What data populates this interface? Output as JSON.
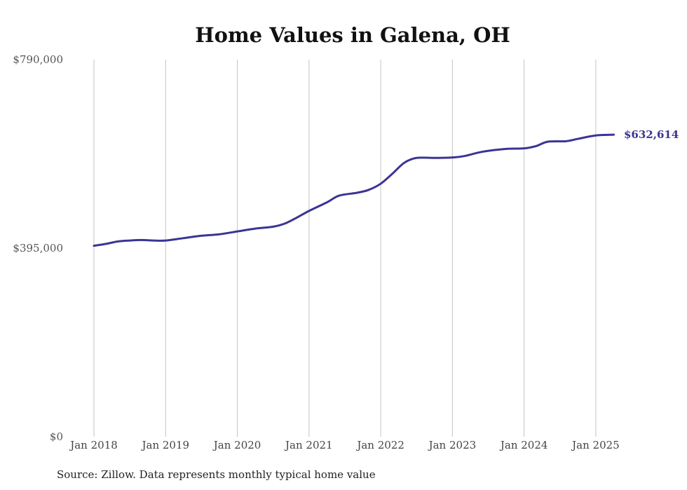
{
  "chart_data": {
    "type": "line",
    "title": "Home Values in Galena, OH",
    "xlabel": "",
    "ylabel": "",
    "ylim": [
      0,
      790000
    ],
    "y_ticks": [
      {
        "value": 0,
        "label": "$0"
      },
      {
        "value": 395000,
        "label": "$395,000"
      },
      {
        "value": 790000,
        "label": "$790,000"
      }
    ],
    "x_ticks": [
      {
        "value": 2018,
        "label": "Jan 2018"
      },
      {
        "value": 2019,
        "label": "Jan 2019"
      },
      {
        "value": 2020,
        "label": "Jan 2020"
      },
      {
        "value": 2021,
        "label": "Jan 2021"
      },
      {
        "value": 2022,
        "label": "Jan 2022"
      },
      {
        "value": 2023,
        "label": "Jan 2023"
      },
      {
        "value": 2024,
        "label": "Jan 2024"
      },
      {
        "value": 2025,
        "label": "Jan 2025"
      }
    ],
    "xlim": [
      2018,
      2025.25
    ],
    "grid": "vertical",
    "color": "#3b3494",
    "end_label": "$632,614",
    "series": [
      {
        "points": [
          {
            "x": 2018.0,
            "y": 400000
          },
          {
            "x": 2018.17,
            "y": 404000
          },
          {
            "x": 2018.33,
            "y": 409000
          },
          {
            "x": 2018.5,
            "y": 411000
          },
          {
            "x": 2018.67,
            "y": 412000
          },
          {
            "x": 2018.83,
            "y": 411000
          },
          {
            "x": 2019.0,
            "y": 411000
          },
          {
            "x": 2019.25,
            "y": 416000
          },
          {
            "x": 2019.5,
            "y": 421000
          },
          {
            "x": 2019.75,
            "y": 424000
          },
          {
            "x": 2020.0,
            "y": 430000
          },
          {
            "x": 2020.25,
            "y": 436000
          },
          {
            "x": 2020.5,
            "y": 440000
          },
          {
            "x": 2020.67,
            "y": 447000
          },
          {
            "x": 2020.83,
            "y": 459000
          },
          {
            "x": 2021.0,
            "y": 473000
          },
          {
            "x": 2021.25,
            "y": 491000
          },
          {
            "x": 2021.42,
            "y": 505000
          },
          {
            "x": 2021.67,
            "y": 511000
          },
          {
            "x": 2021.83,
            "y": 517000
          },
          {
            "x": 2022.0,
            "y": 530000
          },
          {
            "x": 2022.17,
            "y": 552000
          },
          {
            "x": 2022.33,
            "y": 574000
          },
          {
            "x": 2022.5,
            "y": 584000
          },
          {
            "x": 2022.75,
            "y": 584000
          },
          {
            "x": 2023.0,
            "y": 585000
          },
          {
            "x": 2023.17,
            "y": 588000
          },
          {
            "x": 2023.42,
            "y": 597000
          },
          {
            "x": 2023.75,
            "y": 603000
          },
          {
            "x": 2024.0,
            "y": 604000
          },
          {
            "x": 2024.17,
            "y": 609000
          },
          {
            "x": 2024.33,
            "y": 618000
          },
          {
            "x": 2024.58,
            "y": 619000
          },
          {
            "x": 2024.75,
            "y": 624000
          },
          {
            "x": 2025.0,
            "y": 631000
          },
          {
            "x": 2025.25,
            "y": 632614
          }
        ]
      }
    ]
  },
  "source_text": "Source: Zillow. Data represents monthly typical home value"
}
